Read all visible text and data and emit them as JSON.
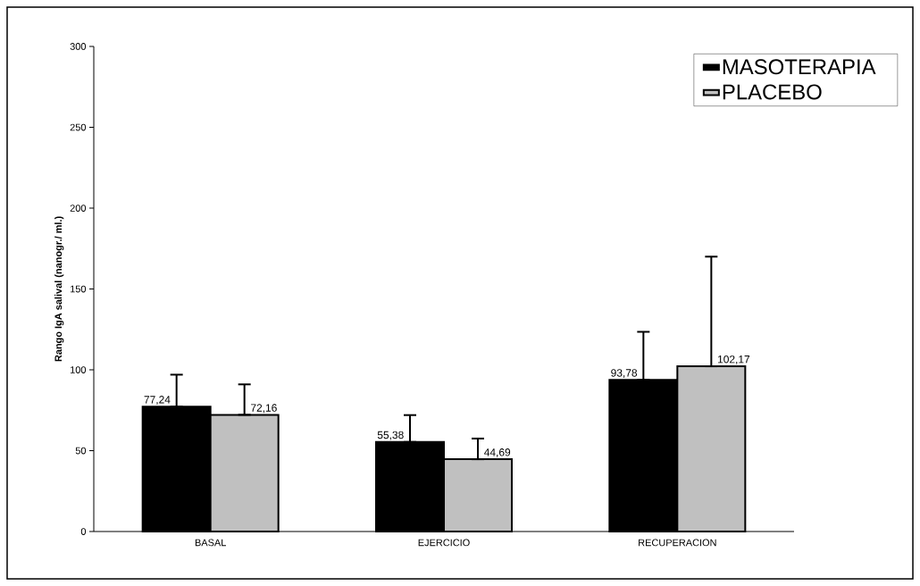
{
  "chart_data": {
    "type": "bar",
    "ylabel": "Rango IgA salival (nanogr./ ml.)",
    "categories": [
      "BASAL",
      "EJERCICIO",
      "RECUPERACION"
    ],
    "series": [
      {
        "name": "MASOTERAPIA",
        "color": "#000000",
        "values": [
          77.24,
          55.38,
          93.78
        ],
        "errors": [
          [
            77.24,
            97
          ],
          [
            55.38,
            72
          ],
          [
            93.78,
            123.5
          ]
        ],
        "value_labels": [
          "77,24",
          "55,38",
          "93,78"
        ]
      },
      {
        "name": "PLACEBO",
        "color": "#c0c0c0",
        "values": [
          72.16,
          44.69,
          102.17
        ],
        "errors": [
          [
            72.16,
            91
          ],
          [
            44.69,
            57.5
          ],
          [
            102.17,
            170
          ]
        ],
        "value_labels": [
          "72,16",
          "44,69",
          "102,17"
        ]
      }
    ],
    "ylim": [
      0,
      300
    ],
    "yticks": [
      0,
      50,
      100,
      150,
      200,
      250,
      300
    ],
    "legend": "top right"
  }
}
